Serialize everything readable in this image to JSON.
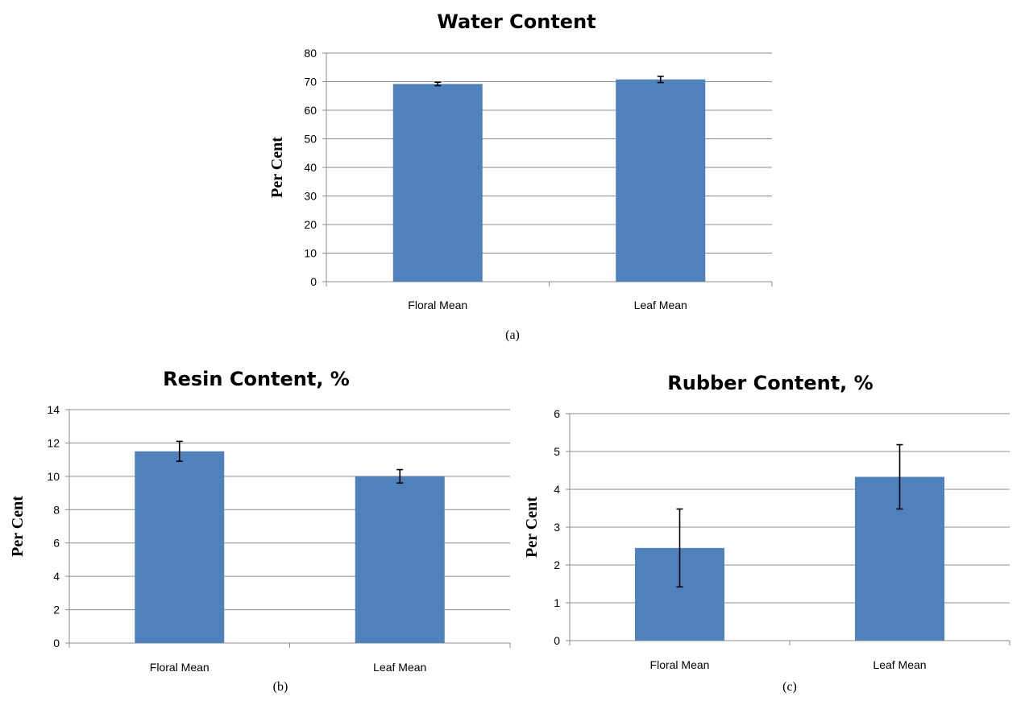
{
  "colors": {
    "bar": "#4F81BD",
    "grid": "#8c8c8c",
    "error": "#000000"
  },
  "chart_data": [
    {
      "id": "a",
      "type": "bar",
      "title": "Water Content",
      "ylabel": "Per Cent",
      "caption": "(a)",
      "categories": [
        "Floral Mean",
        "Leaf Mean"
      ],
      "values": [
        69.2,
        70.8
      ],
      "errors": [
        0.6,
        1.1
      ],
      "ylim": [
        0,
        80
      ],
      "yticks": [
        0,
        10,
        20,
        30,
        40,
        50,
        60,
        70,
        80
      ],
      "grid": true
    },
    {
      "id": "b",
      "type": "bar",
      "title": "Resin Content, %",
      "ylabel": "Per Cent",
      "caption": "(b)",
      "categories": [
        "Floral Mean",
        "Leaf Mean"
      ],
      "values": [
        11.5,
        10.0
      ],
      "errors": [
        0.6,
        0.4
      ],
      "ylim": [
        0,
        14
      ],
      "yticks": [
        0,
        2,
        4,
        6,
        8,
        10,
        12,
        14
      ],
      "grid": true
    },
    {
      "id": "c",
      "type": "bar",
      "title": "Rubber Content, %",
      "ylabel": "Per Cent",
      "caption": "(c)",
      "categories": [
        "Floral Mean",
        "Leaf Mean"
      ],
      "values": [
        2.45,
        4.33
      ],
      "errors": [
        1.03,
        0.85
      ],
      "ylim": [
        0,
        6
      ],
      "yticks": [
        0,
        1,
        2,
        3,
        4,
        5,
        6
      ],
      "grid": true
    }
  ]
}
